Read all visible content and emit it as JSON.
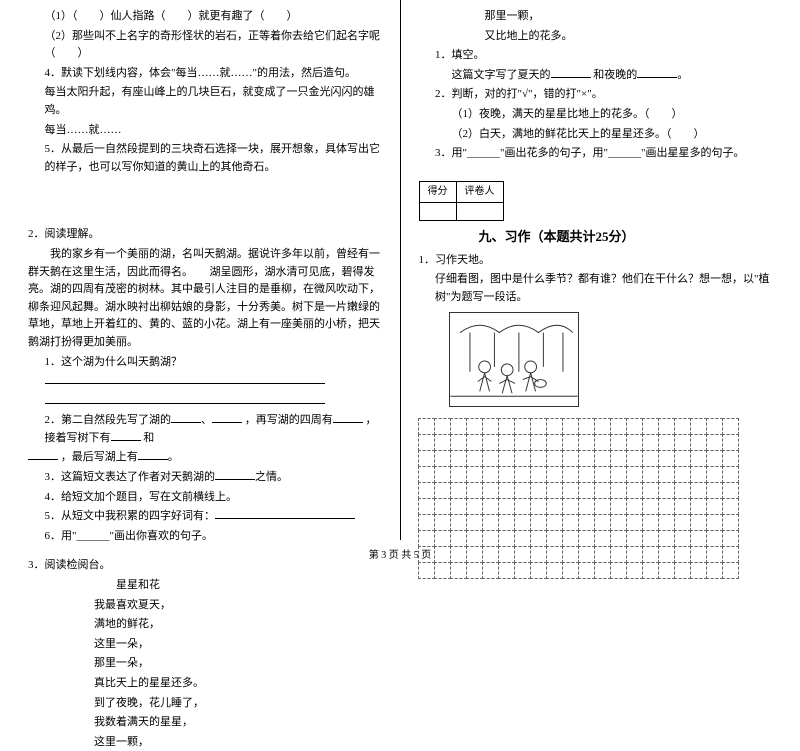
{
  "left": {
    "items": [
      "（1）（　　）仙人指路（　　）就更有趣了（　　）",
      "（2）那些叫不上名字的奇形怪状的岩石，正等着你去给它们起名字呢（　　）",
      "4．默读下划线内容，体会\"每当……就……\"的用法，然后造句。",
      "每当太阳升起，有座山峰上的几块巨石，就变成了一只金光闪闪的雄鸡。",
      "每当……就……",
      "5．从最后一自然段提到的三块奇石选择一块，展开想象，具体写出它的样子，也可以写你知道的黄山上的其他奇石。"
    ],
    "q2_title": "2．阅读理解。",
    "q2_passage": "　　我的家乡有一个美丽的湖，名叫天鹅湖。据说许多年以前，曾经有一群天鹅在这里生活，因此而得名。　　湖呈圆形，湖水清可见底，碧得发亮。湖的四周有茂密的树林。其中最引人注目的是垂柳，在微风吹动下，柳条迎风起舞。湖水映衬出柳姑娘的身影，十分秀美。树下是一片嫩绿的草地，草地上开着红的、黄的、蓝的小花。湖上有一座美丽的小桥，把天鹅湖打扮得更加美丽。",
    "q2_sub1": "1．这个湖为什么叫天鹅湖？",
    "q2_sub2_a": "2．第二自然段先写了湖的",
    "q2_sub2_b": "，再写湖的四周有",
    "q2_sub2_c": "，接着写树下有",
    "q2_sub2_d": "和",
    "q2_sub2_e": "，最后写湖上有",
    "q2_sub3": "3．这篇短文表达了作者对天鹅湖的",
    "q2_sub3b": "之情。",
    "q2_sub4": "4．给短文加个题目，写在文前横线上。",
    "q2_sub5": "5．从短文中我积累的四字好词有：",
    "q2_sub6": "6．用\"______\"画出你喜欢的句子。",
    "q3_title": "3．阅读检阅台。",
    "poem_title": "星星和花",
    "poem": [
      "我最喜欢夏天，",
      "满地的鲜花，",
      "这里一朵，",
      "那里一朵，",
      "真比天上的星星还多。",
      "到了夜晚，花儿睡了，",
      "我数着满天的星星，",
      "这里一颗，"
    ]
  },
  "right": {
    "poem_cont": [
      "那里一颗，",
      "又比地上的花多。"
    ],
    "r1": "1．填空。",
    "r1a": "这篇文字写了夏天的",
    "r1b": "和夜晚的",
    "r2": "2．判断，对的打\"√\"，错的打\"×\"。",
    "r2a": "（1）夜晚，满天的星星比地上的花多。（　　）",
    "r2b": "（2）白天，满地的鲜花比天上的星星还多。（　　）",
    "r3a": "3．用\"______\"画出花多的句子，用\"______\"画出星星多的句子。",
    "score_labels": [
      "得分",
      "评卷人"
    ],
    "section9": "九、习作（本题共计25分）",
    "w1": "1．习作天地。",
    "w1_text": "仔细看图，图中是什么季节？都有谁？他们在干什么？想一想，以\"植树\"为题写一段话。",
    "grid": {
      "rows": 10,
      "cols": 20
    }
  },
  "footer": "第 3 页  共 5 页"
}
